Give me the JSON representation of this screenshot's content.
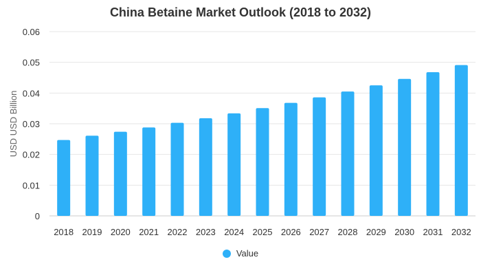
{
  "chart_data": {
    "type": "bar",
    "title": "China Betaine Market Outlook (2018 to 2032)",
    "xlabel": "",
    "ylabel": "USD USD Billion",
    "categories": [
      "2018",
      "2019",
      "2020",
      "2021",
      "2022",
      "2023",
      "2024",
      "2025",
      "2026",
      "2027",
      "2028",
      "2029",
      "2030",
      "2031",
      "2032"
    ],
    "series": [
      {
        "name": "Value",
        "color": "#2eb0f8",
        "values": [
          0.0247,
          0.0261,
          0.0274,
          0.0288,
          0.0303,
          0.0318,
          0.0334,
          0.0351,
          0.0368,
          0.0386,
          0.0405,
          0.0425,
          0.0446,
          0.0468,
          0.0491
        ]
      }
    ],
    "ylim": [
      0,
      0.06
    ],
    "yticks": [
      "0",
      "0.01",
      "0.02",
      "0.03",
      "0.04",
      "0.05",
      "0.06"
    ],
    "grid": true,
    "legend_position": "bottom"
  }
}
